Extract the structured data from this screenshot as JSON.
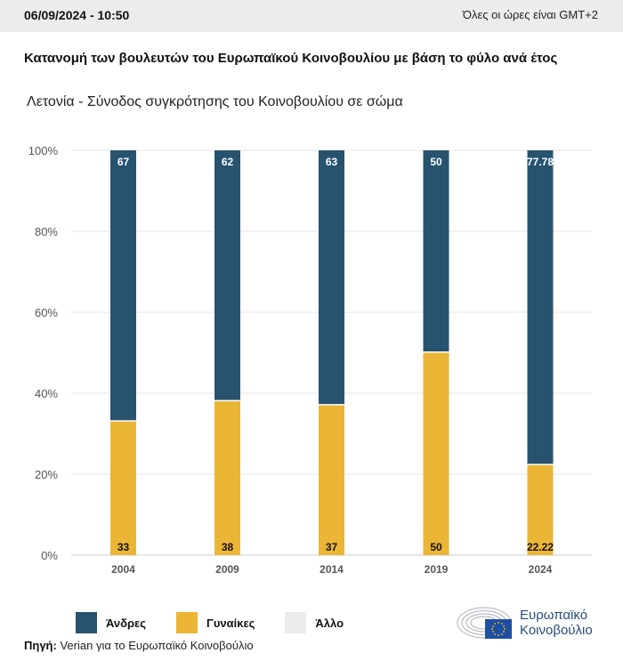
{
  "header": {
    "datetime": "06/09/2024 - 10:50",
    "timezone_note": "Όλες οι ώρες είναι GMT+2"
  },
  "title": "Κατανομή των βουλευτών του Ευρωπαϊκού Κοινοβουλίου με βάση το φύλο ανά έτος",
  "subtitle": "Λετονία - Σύνοδος συγκρότησης του Κοινοβουλίου σε σώμα",
  "colors": {
    "men": "#27536f",
    "women": "#ebb536",
    "other": "#ececee"
  },
  "chart_data": {
    "type": "bar",
    "stacked": true,
    "normalized": true,
    "title": "Κατανομή των βουλευτών του Ευρωπαϊκού Κοινοβουλίου με βάση το φύλο ανά έτος",
    "subtitle": "Λετονία - Σύνοδος συγκρότησης του Κοινοβουλίου σε σώμα",
    "xlabel": "",
    "ylabel": "",
    "categories": [
      "2004",
      "2009",
      "2014",
      "2019",
      "2024"
    ],
    "series": [
      {
        "name": "Γυναίκες",
        "values": [
          33,
          38,
          37,
          50,
          22.22
        ],
        "labels": [
          "33",
          "38",
          "37",
          "50",
          "22.22"
        ]
      },
      {
        "name": "Άνδρες",
        "values": [
          67,
          62,
          63,
          50,
          77.78
        ],
        "labels": [
          "67",
          "62",
          "63",
          "50",
          "77.78"
        ]
      },
      {
        "name": "Άλλο",
        "values": [
          0,
          0,
          0,
          0,
          0
        ]
      }
    ],
    "ylim": [
      0,
      100
    ],
    "yticks": [
      "0%",
      "20%",
      "40%",
      "60%",
      "80%",
      "100%"
    ],
    "grid": true,
    "legend_position": "bottom-left"
  },
  "legend": [
    {
      "label": "Άνδρες",
      "key": "men"
    },
    {
      "label": "Γυναίκες",
      "key": "women"
    },
    {
      "label": "Άλλο",
      "key": "other"
    }
  ],
  "source": {
    "label": "Πηγή:",
    "text": "Verian για το Ευρωπαϊκό Κοινοβούλιο"
  },
  "logo": {
    "line1": "Ευρωπαϊκό",
    "line2": "Κοινοβούλιο"
  }
}
